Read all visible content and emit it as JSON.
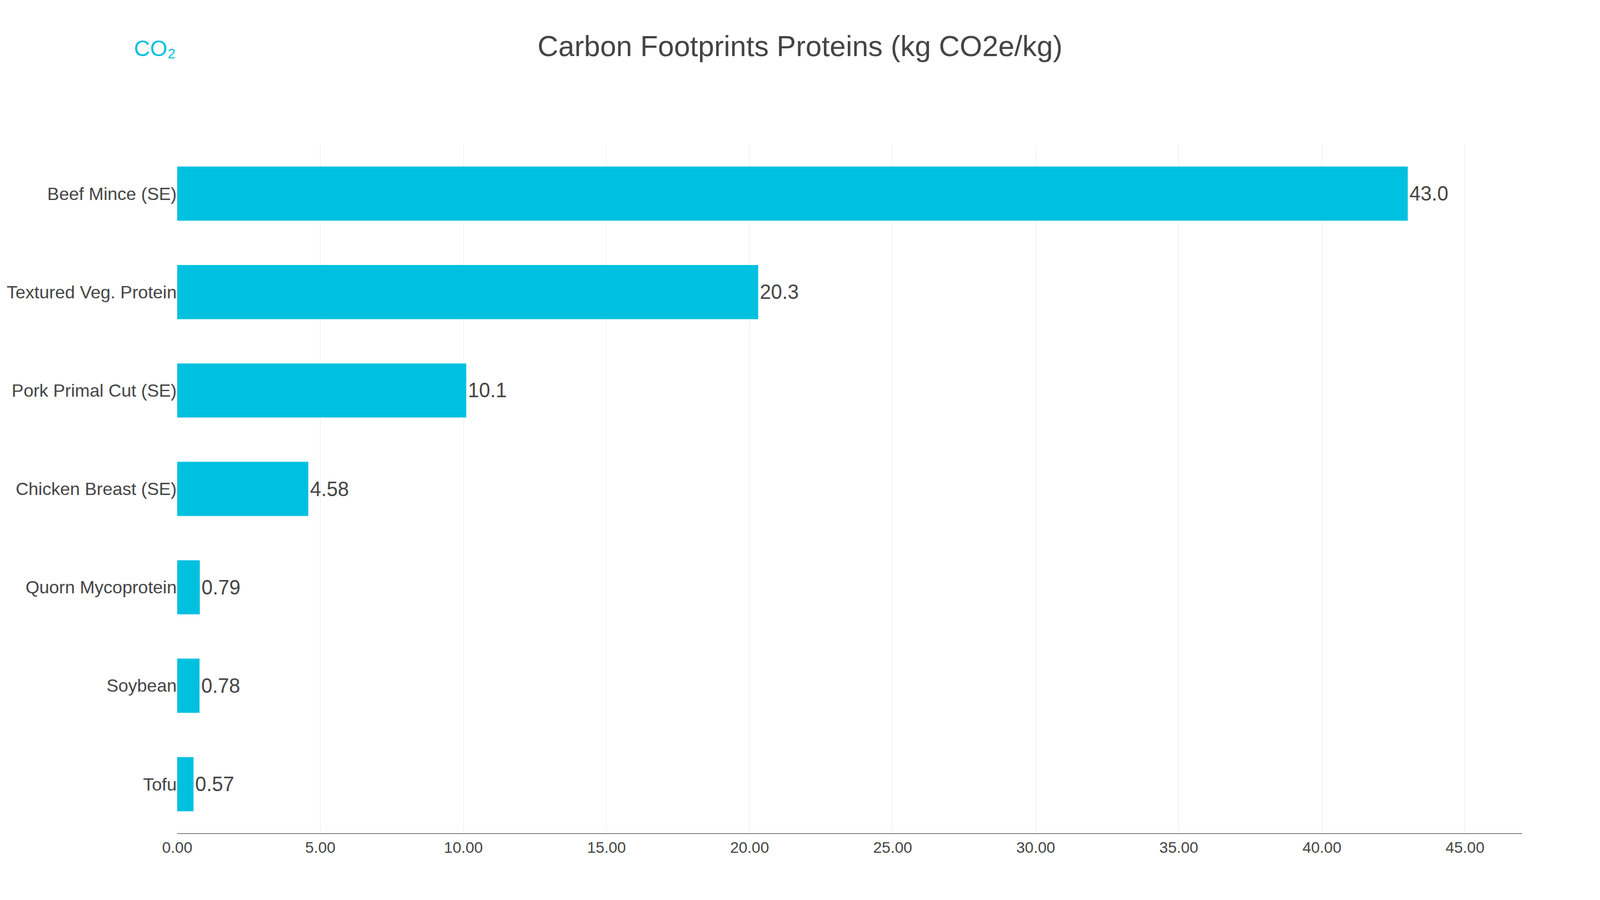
{
  "chart_data": {
    "type": "bar",
    "orientation": "horizontal",
    "title": "Carbon Footprints Proteins (kg CO2e/kg)",
    "categories": [
      "Beef Mince (SE)",
      "Textured Veg. Protein",
      "Pork Primal Cut (SE)",
      "Chicken Breast (SE)",
      "Quorn Mycoprotein",
      "Soybean",
      "Tofu"
    ],
    "values": [
      43.0,
      20.3,
      10.1,
      4.58,
      0.79,
      0.78,
      0.57
    ],
    "value_labels": [
      "43.0",
      "20.3",
      "10.1",
      "4.58",
      "0.79",
      "0.78",
      "0.57"
    ],
    "data_labels": true,
    "color": "#00c0e0",
    "xlim": [
      0,
      47
    ],
    "xticks": [
      {
        "value": 0,
        "label": "0.00"
      },
      {
        "value": 5,
        "label": "5.00"
      },
      {
        "value": 10,
        "label": "10.00"
      },
      {
        "value": 15,
        "label": "15.00"
      },
      {
        "value": 20,
        "label": "20.00"
      },
      {
        "value": 25,
        "label": "25.00"
      },
      {
        "value": 30,
        "label": "30.00"
      },
      {
        "value": 35,
        "label": "35.00"
      },
      {
        "value": 40,
        "label": "40.00"
      },
      {
        "value": 45,
        "label": "45.00"
      }
    ],
    "grid": true,
    "annotations": [
      "CO₂"
    ]
  }
}
